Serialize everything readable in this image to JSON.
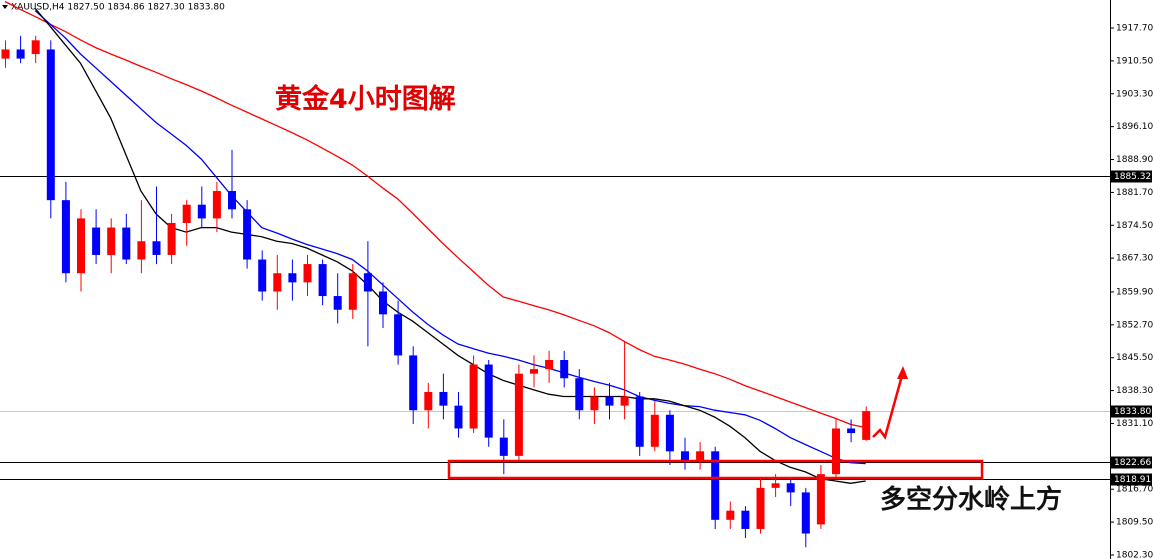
{
  "chart_data": {
    "type": "candlestick",
    "title": "XAUUSD,H4  1827.50 1834.86 1827.30 1833.80",
    "annotations": [
      "黄金4小时图解",
      "多空分水岭上方"
    ],
    "up_color": "#ff0000",
    "down_color": "#0000ff",
    "ylim": [
      1801.42,
      1923.83
    ],
    "yticks": [
      {
        "value": 1917.7,
        "label": "1917.70"
      },
      {
        "value": 1910.5,
        "label": "1910.50"
      },
      {
        "value": 1903.3,
        "label": "1903.30"
      },
      {
        "value": 1896.1,
        "label": "1896.10"
      },
      {
        "value": 1888.9,
        "label": "1888.90"
      },
      {
        "value": 1881.7,
        "label": "1881.70"
      },
      {
        "value": 1874.5,
        "label": "1874.50"
      },
      {
        "value": 1867.3,
        "label": "1867.30"
      },
      {
        "value": 1859.9,
        "label": "1859.90"
      },
      {
        "value": 1852.7,
        "label": "1852.70"
      },
      {
        "value": 1845.5,
        "label": "1845.50"
      },
      {
        "value": 1838.3,
        "label": "1838.30"
      },
      {
        "value": 1831.1,
        "label": "1831.10"
      },
      {
        "value": 1816.7,
        "label": "1816.70"
      },
      {
        "value": 1809.5,
        "label": "1809.50"
      },
      {
        "value": 1802.3,
        "label": "1802.30"
      }
    ],
    "hlines": [
      {
        "value": 1885.32,
        "color": "#000000"
      },
      {
        "value": 1833.8,
        "label": "1833.80",
        "color": "#c8c8c8"
      },
      {
        "value": 1822.66,
        "color": "#000000"
      },
      {
        "value": 1818.91,
        "color": "#000000"
      }
    ],
    "open": [
      1911,
      1913,
      1912,
      1913,
      1880,
      1864,
      1874,
      1868,
      1874,
      1867,
      1871,
      1868,
      1875,
      1879,
      1876,
      1882,
      1878,
      1867,
      1860,
      1864,
      1862,
      1866,
      1859,
      1856,
      1864,
      1860,
      1855,
      1846,
      1834,
      1838,
      1835,
      1830,
      1844,
      1828,
      1824,
      1842,
      1843,
      1845,
      1841,
      1834,
      1837,
      1835,
      1837,
      1826,
      1833,
      1825,
      1823,
      1825,
      1810,
      1812,
      1808,
      1817,
      1818,
      1816,
      1809,
      1820,
      1830,
      1827.5
    ],
    "high": [
      1915,
      1916,
      1916,
      1915,
      1884,
      1878,
      1878,
      1876,
      1877,
      1880,
      1883,
      1877,
      1880,
      1883,
      1884,
      1891,
      1880,
      1869,
      1868,
      1867,
      1868,
      1867,
      1864,
      1866,
      1871,
      1862,
      1858,
      1848,
      1840,
      1842,
      1838,
      1846,
      1845,
      1832,
      1844,
      1846,
      1847,
      1847,
      1843,
      1839,
      1840,
      1849,
      1838,
      1836,
      1834,
      1828,
      1827,
      1826,
      1814,
      1813,
      1819,
      1820,
      1819,
      1817,
      1822,
      1832,
      1832,
      1834.86
    ],
    "low": [
      1909,
      1910,
      1910,
      1876,
      1862,
      1860,
      1866,
      1864,
      1866,
      1864,
      1866,
      1866,
      1870,
      1874,
      1873,
      1876,
      1865,
      1858,
      1856,
      1858,
      1859,
      1857,
      1853,
      1854,
      1848,
      1852,
      1844,
      1831,
      1830,
      1832,
      1828,
      1829,
      1826,
      1820,
      1823,
      1839,
      1840,
      1839,
      1832,
      1831,
      1832,
      1832,
      1824,
      1825,
      1822,
      1821,
      1821,
      1808,
      1808,
      1806,
      1807,
      1815,
      1813,
      1804,
      1808,
      1819,
      1827,
      1827.3
    ],
    "close": [
      1913,
      1911,
      1915,
      1880,
      1864,
      1876,
      1868,
      1874,
      1867,
      1871,
      1868,
      1875,
      1879,
      1876,
      1882,
      1878,
      1867,
      1860,
      1864,
      1862,
      1866,
      1859,
      1856,
      1864,
      1860,
      1855,
      1846,
      1834,
      1838,
      1835,
      1830,
      1844,
      1828,
      1824,
      1842,
      1843,
      1845,
      1841,
      1834,
      1837,
      1835,
      1837,
      1826,
      1833,
      1825,
      1823,
      1825,
      1810,
      1812,
      1808,
      1817,
      1818,
      1816,
      1807,
      1820,
      1830,
      1829,
      1833.8
    ],
    "lines": [
      {
        "color": "#ff0000",
        "values": [
          1923.5,
          1921.8,
          1920.2,
          1918.5,
          1916.9,
          1915.1,
          1913.4,
          1912.0,
          1910.7,
          1909.3,
          1908.0,
          1906.6,
          1905.3,
          1903.9,
          1902.4,
          1900.8,
          1899.3,
          1897.8,
          1896.3,
          1894.8,
          1893.2,
          1891.4,
          1889.6,
          1887.7,
          1885.3,
          1882.7,
          1880.3,
          1877.1,
          1873.8,
          1870.5,
          1867.4,
          1864.4,
          1861.4,
          1858.8,
          1857.9,
          1856.9,
          1856.0,
          1854.9,
          1853.7,
          1852.5,
          1851.0,
          1849.1,
          1847.3,
          1845.8,
          1845.0,
          1844.1,
          1843.0,
          1842.0,
          1840.8,
          1839.4,
          1838.2,
          1837.0,
          1835.8,
          1834.6,
          1833.4,
          1832.2,
          1830.9,
          1830.2
        ]
      },
      {
        "color": "#0000ff",
        "values": [
          null,
          null,
          1921.5,
          1918.5,
          1915.5,
          1912.0,
          1909.0,
          1906.0,
          1903.0,
          1900.0,
          1897.0,
          1894.5,
          1892.0,
          1889.0,
          1885.0,
          1881.0,
          1877.5,
          1874.0,
          1872.8,
          1871.5,
          1870.3,
          1869.3,
          1868.3,
          1867.0,
          1864.5,
          1861.5,
          1858.5,
          1855.5,
          1852.8,
          1850.5,
          1848.5,
          1847.5,
          1846.5,
          1845.8,
          1845.0,
          1844.0,
          1843.2,
          1842.2,
          1841.2,
          1840.3,
          1839.5,
          1838.5,
          1837.0,
          1836.2,
          1835.5,
          1835.0,
          1834.8,
          1834.0,
          1833.5,
          1833.0,
          1831.8,
          1830.0,
          1828.0,
          1826.5,
          1825.0,
          1823.5,
          1822.5,
          1822.3
        ]
      },
      {
        "color": "#000000",
        "values": [
          null,
          null,
          1922,
          1918,
          1914,
          1910,
          1904,
          1898,
          1890,
          1882,
          1877,
          1874,
          1873,
          1874,
          1874,
          1873,
          1872.5,
          1872,
          1871,
          1870.5,
          1869.5,
          1868,
          1866.5,
          1864.5,
          1861.5,
          1858,
          1855.5,
          1853.5,
          1851,
          1848.5,
          1846,
          1844,
          1842,
          1840.5,
          1839.5,
          1838.5,
          1837.5,
          1837,
          1837,
          1837,
          1837,
          1837,
          1836.5,
          1836.5,
          1836,
          1835,
          1834,
          1832.5,
          1830.5,
          1828,
          1825,
          1823,
          1821.5,
          1820.5,
          1819,
          1818.5,
          1818,
          1818.5
        ]
      }
    ]
  }
}
